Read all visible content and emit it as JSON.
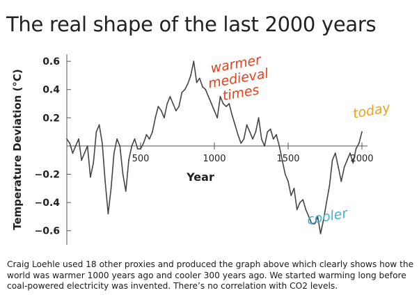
{
  "title": "The real shape of the last 2000 years",
  "caption": "Craig  Loehle used 18 other proxies and produced the graph above which clearly shows how the world was warmer 1000 years ago and cooler 300 years ago. We started warming long before coal-powered electricity was invented. There’s no correlation with CO2 levels.",
  "chart_data": {
    "type": "line",
    "xlabel": "Year",
    "ylabel": "Temperature Deviation (°C)",
    "xlim": [
      0,
      2000
    ],
    "ylim": [
      -0.7,
      0.65
    ],
    "x_ticks": [
      500,
      1000,
      1500,
      2000
    ],
    "x_tick_labels": [
      "500",
      "1000",
      "1500",
      "2000"
    ],
    "y_ticks": [
      -0.6,
      -0.4,
      -0.2,
      0.2,
      0.4,
      0.6
    ],
    "y_tick_labels": [
      "−0.6",
      "−0.4",
      "−0.2",
      "0.2",
      "0.4",
      "0.6"
    ],
    "grid": false,
    "line_color": "#444444",
    "annotations": [
      {
        "text": "warmer\nmedieval\ntimes",
        "color": "#e8401c",
        "x": 1150,
        "y": 0.55
      },
      {
        "text": "today",
        "color": "#f0a020",
        "x": 2070,
        "y": 0.22
      },
      {
        "text": "cooler",
        "color": "#3bb4d8",
        "x": 1770,
        "y": -0.53
      }
    ],
    "series": [
      {
        "x": [
          0,
          20,
          40,
          60,
          80,
          100,
          120,
          140,
          160,
          180,
          200,
          220,
          240,
          260,
          280,
          300,
          320,
          340,
          360,
          380,
          400,
          420,
          440,
          460,
          480,
          500,
          520,
          540,
          560,
          580,
          600,
          620,
          640,
          660,
          680,
          700,
          720,
          740,
          760,
          780,
          800,
          820,
          840,
          860,
          880,
          900,
          920,
          940,
          960,
          980,
          1000,
          1020,
          1040,
          1060,
          1080,
          1100,
          1120,
          1140,
          1160,
          1180,
          1200,
          1220,
          1240,
          1260,
          1280,
          1300,
          1320,
          1340,
          1360,
          1380,
          1400,
          1420,
          1440,
          1460,
          1480,
          1500,
          1520,
          1540,
          1560,
          1580,
          1600,
          1620,
          1640,
          1660,
          1680,
          1700,
          1720,
          1740,
          1760,
          1780,
          1800,
          1820,
          1840,
          1860,
          1880,
          1900,
          1920,
          1940,
          1960,
          1980,
          2000
        ],
        "values": [
          0.05,
          0.02,
          -0.05,
          0.0,
          0.05,
          -0.1,
          -0.05,
          0.0,
          -0.22,
          -0.12,
          0.1,
          0.15,
          0.02,
          -0.25,
          -0.48,
          -0.3,
          -0.05,
          0.05,
          0.0,
          -0.2,
          -0.32,
          -0.1,
          0.0,
          0.05,
          -0.02,
          -0.02,
          0.02,
          0.08,
          0.05,
          0.1,
          0.2,
          0.28,
          0.25,
          0.2,
          0.3,
          0.35,
          0.3,
          0.25,
          0.28,
          0.38,
          0.4,
          0.44,
          0.5,
          0.6,
          0.45,
          0.48,
          0.42,
          0.4,
          0.35,
          0.3,
          0.25,
          0.2,
          0.35,
          0.3,
          0.28,
          0.3,
          0.22,
          0.15,
          0.08,
          0.02,
          0.05,
          0.15,
          0.1,
          0.05,
          0.1,
          0.2,
          0.05,
          0.0,
          0.1,
          0.12,
          0.05,
          0.08,
          0.0,
          -0.1,
          -0.2,
          -0.25,
          -0.35,
          -0.3,
          -0.45,
          -0.4,
          -0.38,
          -0.45,
          -0.5,
          -0.55,
          -0.55,
          -0.5,
          -0.62,
          -0.52,
          -0.4,
          -0.28,
          -0.1,
          -0.05,
          -0.15,
          -0.25,
          -0.15,
          -0.1,
          -0.05,
          -0.12,
          -0.02,
          0.02,
          0.1
        ]
      }
    ]
  }
}
